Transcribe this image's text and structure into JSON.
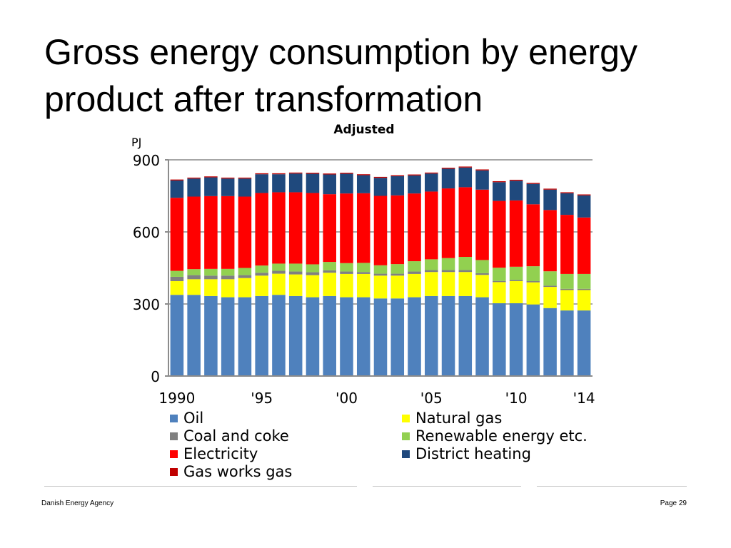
{
  "slide": {
    "title": "Gross energy consumption by energy product after transformation",
    "footer_left": "Danish Energy Agency",
    "footer_right": "Page 29"
  },
  "chart_data": {
    "type": "bar",
    "stacked": true,
    "title": "Adjusted",
    "ylabel": "PJ",
    "ylim": [
      0,
      900
    ],
    "yticks": [
      0,
      300,
      600,
      900
    ],
    "x": [
      1990,
      1991,
      1992,
      1993,
      1994,
      1995,
      1996,
      1997,
      1998,
      1999,
      2000,
      2001,
      2002,
      2003,
      2004,
      2005,
      2006,
      2007,
      2008,
      2009,
      2010,
      2011,
      2012,
      2013,
      2014
    ],
    "xtick_labels": [
      {
        "year": 1990,
        "label": "1990"
      },
      {
        "year": 1995,
        "label": "'95"
      },
      {
        "year": 2000,
        "label": "'00"
      },
      {
        "year": 2005,
        "label": "'05"
      },
      {
        "year": 2010,
        "label": "'10"
      },
      {
        "year": 2014,
        "label": "'14"
      }
    ],
    "series": [
      {
        "name": "Oil",
        "color": "#4f81bd",
        "values": [
          338,
          338,
          333,
          328,
          328,
          333,
          338,
          333,
          328,
          333,
          328,
          328,
          323,
          323,
          328,
          333,
          333,
          333,
          328,
          303,
          303,
          298,
          283,
          273,
          273
        ]
      },
      {
        "name": "Natural gas",
        "color": "#ffff00",
        "values": [
          57,
          65,
          70,
          75,
          80,
          85,
          88,
          90,
          92,
          97,
          97,
          97,
          95,
          95,
          97,
          100,
          100,
          100,
          93,
          88,
          92,
          92,
          88,
          85,
          85
        ]
      },
      {
        "name": "Coal and coke",
        "color": "#808080",
        "values": [
          18,
          17,
          15,
          15,
          12,
          12,
          12,
          12,
          12,
          10,
          10,
          8,
          8,
          8,
          10,
          8,
          8,
          8,
          7,
          5,
          5,
          5,
          5,
          5,
          5
        ]
      },
      {
        "name": "Renewable energy etc.",
        "color": "#92d050",
        "values": [
          25,
          25,
          28,
          28,
          30,
          30,
          30,
          33,
          33,
          35,
          35,
          38,
          35,
          40,
          43,
          45,
          50,
          55,
          55,
          55,
          55,
          62,
          60,
          62,
          62
        ]
      },
      {
        "name": "Electricity",
        "color": "#ff0000",
        "values": [
          304,
          302,
          303,
          303,
          297,
          302,
          297,
          297,
          297,
          282,
          290,
          290,
          289,
          286,
          282,
          282,
          290,
          290,
          293,
          278,
          276,
          258,
          255,
          246,
          235
        ]
      },
      {
        "name": "District heating",
        "color": "#1f497d",
        "values": [
          72,
          75,
          78,
          73,
          75,
          78,
          75,
          78,
          80,
          82,
          82,
          75,
          75,
          80,
          75,
          75,
          82,
          82,
          80,
          78,
          82,
          85,
          85,
          90,
          92
        ]
      },
      {
        "name": "Gas works gas",
        "color": "#c00000",
        "values": [
          4,
          4,
          4,
          4,
          4,
          4,
          4,
          4,
          4,
          4,
          4,
          4,
          4,
          4,
          4,
          4,
          4,
          4,
          4,
          4,
          4,
          4,
          4,
          4,
          4
        ]
      }
    ],
    "legend": "bottom, two columns"
  }
}
